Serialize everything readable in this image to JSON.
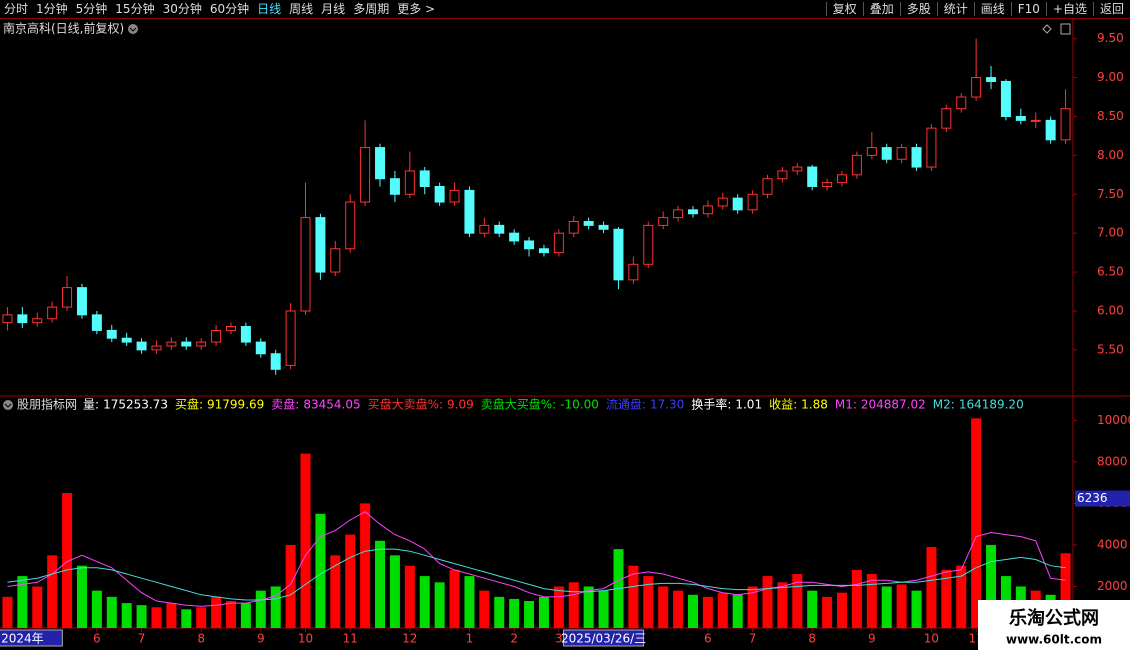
{
  "toolbar": {
    "left": [
      {
        "label": "分时"
      },
      {
        "label": "1分钟"
      },
      {
        "label": "5分钟"
      },
      {
        "label": "15分钟"
      },
      {
        "label": "30分钟"
      },
      {
        "label": "60分钟"
      },
      {
        "label": "日线",
        "active": true
      },
      {
        "label": "周线"
      },
      {
        "label": "月线"
      },
      {
        "label": "多周期"
      },
      {
        "label": "更多 >"
      }
    ],
    "right": [
      "复权",
      "叠加",
      "多股",
      "统计",
      "画线",
      "F10",
      "+自选",
      "返回"
    ]
  },
  "watermark": {
    "title": "乐淘公式网",
    "url": "www.60lt.com"
  },
  "chart_data": [
    {
      "type": "candlestick",
      "title": "南京高科(日线,前复权)",
      "up_color": "#ff3232",
      "down_color": "#54fcfc",
      "ylim": [
        4.92,
        9.74
      ],
      "yticks": [
        {
          "value": 5.5,
          "label": "5.50"
        },
        {
          "value": 6,
          "label": "6.00"
        },
        {
          "value": 6.5,
          "label": "6.50"
        },
        {
          "value": 7,
          "label": "7.00"
        },
        {
          "value": 7.5,
          "label": "7.50"
        },
        {
          "value": 8,
          "label": "8.00"
        },
        {
          "value": 8.5,
          "label": "8.50"
        },
        {
          "value": 9,
          "label": "9.00"
        },
        {
          "value": 9.5,
          "label": "9.50"
        }
      ],
      "open": [
        5.85,
        5.95,
        5.85,
        5.9,
        6.05,
        6.3,
        5.95,
        5.75,
        5.65,
        5.6,
        5.5,
        5.55,
        5.6,
        5.55,
        5.6,
        5.75,
        5.8,
        5.6,
        5.45,
        5.3,
        6.0,
        7.2,
        6.5,
        6.8,
        7.4,
        8.1,
        7.7,
        7.5,
        7.8,
        7.6,
        7.4,
        7.55,
        7.0,
        7.1,
        7.0,
        6.9,
        6.8,
        6.75,
        7.0,
        7.15,
        7.1,
        7.05,
        6.4,
        6.6,
        7.1,
        7.2,
        7.3,
        7.25,
        7.35,
        7.45,
        7.3,
        7.5,
        7.7,
        7.8,
        7.85,
        7.6,
        7.65,
        7.75,
        8.0,
        8.1,
        7.95,
        8.1,
        7.85,
        8.35,
        8.6,
        8.75,
        9.0,
        8.95,
        8.5,
        8.45,
        8.45,
        8.2
      ],
      "high": [
        6.05,
        6.05,
        5.98,
        6.12,
        6.45,
        6.35,
        6.0,
        5.82,
        5.72,
        5.65,
        5.62,
        5.66,
        5.66,
        5.65,
        5.82,
        5.85,
        5.85,
        5.65,
        5.5,
        6.1,
        7.65,
        7.25,
        6.9,
        7.5,
        8.45,
        8.15,
        7.8,
        8.05,
        7.85,
        7.65,
        7.65,
        7.6,
        7.2,
        7.15,
        7.05,
        6.95,
        6.85,
        7.05,
        7.22,
        7.2,
        7.15,
        7.08,
        6.7,
        7.15,
        7.28,
        7.35,
        7.35,
        7.42,
        7.52,
        7.5,
        7.55,
        7.75,
        7.85,
        7.9,
        7.88,
        7.7,
        7.8,
        8.05,
        8.3,
        8.15,
        8.15,
        8.15,
        8.4,
        8.65,
        8.8,
        9.5,
        9.15,
        8.98,
        8.6,
        8.55,
        8.5,
        8.85
      ],
      "low": [
        5.75,
        5.78,
        5.8,
        5.85,
        6.0,
        5.9,
        5.7,
        5.6,
        5.55,
        5.45,
        5.45,
        5.5,
        5.5,
        5.5,
        5.55,
        5.7,
        5.55,
        5.4,
        5.18,
        5.25,
        5.95,
        6.4,
        6.45,
        6.75,
        7.35,
        7.6,
        7.4,
        7.45,
        7.5,
        7.35,
        7.35,
        6.95,
        6.95,
        6.95,
        6.85,
        6.7,
        6.7,
        6.7,
        6.95,
        7.05,
        7.0,
        6.28,
        6.35,
        6.55,
        7.05,
        7.15,
        7.2,
        7.2,
        7.3,
        7.25,
        7.25,
        7.45,
        7.65,
        7.75,
        7.55,
        7.55,
        7.6,
        7.7,
        7.95,
        7.9,
        7.9,
        7.8,
        7.8,
        8.3,
        8.55,
        8.7,
        8.85,
        8.45,
        8.4,
        8.35,
        8.15,
        8.15
      ],
      "close": [
        5.95,
        5.85,
        5.9,
        6.05,
        6.3,
        5.95,
        5.75,
        5.65,
        5.6,
        5.5,
        5.55,
        5.6,
        5.55,
        5.6,
        5.75,
        5.8,
        5.6,
        5.45,
        5.25,
        6.0,
        7.2,
        6.5,
        6.8,
        7.4,
        8.1,
        7.7,
        7.5,
        7.8,
        7.6,
        7.4,
        7.55,
        7.0,
        7.1,
        7.0,
        6.9,
        6.8,
        6.75,
        7.0,
        7.15,
        7.1,
        7.05,
        6.4,
        6.6,
        7.1,
        7.2,
        7.3,
        7.25,
        7.35,
        7.45,
        7.3,
        7.5,
        7.7,
        7.8,
        7.85,
        7.6,
        7.65,
        7.75,
        8.0,
        8.1,
        7.95,
        8.1,
        7.85,
        8.35,
        8.6,
        8.75,
        9.0,
        8.95,
        8.5,
        8.45,
        8.45,
        8.2,
        8.6
      ]
    },
    {
      "type": "bar",
      "indicator": "股朋指标网",
      "up_color": "#ff0000",
      "down_color": "#00dd00",
      "ylim": [
        0,
        10500
      ],
      "yticks": [
        2000,
        4000,
        6000,
        8000,
        10000
      ],
      "cursor_value": 6236,
      "header": [
        {
          "label": "量:",
          "value": "175253.73",
          "color": "#ffffff"
        },
        {
          "label": "买盘:",
          "value": "91799.69",
          "color": "#ffff00"
        },
        {
          "label": "卖盘:",
          "value": "83454.05",
          "color": "#ff44ff"
        },
        {
          "label": "买盘大卖盘%:",
          "value": "9.09",
          "color": "#ff3232"
        },
        {
          "label": "卖盘大买盘%:",
          "value": "-10.00",
          "color": "#00e000"
        },
        {
          "label": "流通盘:",
          "value": "17.30",
          "color": "#3c3cff"
        },
        {
          "label": "换手率:",
          "value": "1.01",
          "color": "#ffffff"
        },
        {
          "label": "收益:",
          "value": "1.88",
          "color": "#ffff00"
        },
        {
          "label": "M1:",
          "value": "204887.02",
          "color": "#ff44ff"
        },
        {
          "label": "M2:",
          "value": "164189.20",
          "color": "#44dddd"
        }
      ],
      "categories": [
        null,
        "2024年",
        null,
        null,
        null,
        null,
        "6",
        null,
        null,
        "7",
        null,
        null,
        null,
        "8",
        null,
        null,
        null,
        "9",
        null,
        null,
        "10",
        null,
        null,
        "11",
        null,
        null,
        null,
        "12",
        null,
        null,
        null,
        "1",
        null,
        null,
        "2",
        null,
        null,
        "3",
        null,
        null,
        "2025/03/26/三",
        null,
        null,
        null,
        null,
        null,
        null,
        "6",
        null,
        null,
        "7",
        null,
        null,
        null,
        "8",
        null,
        null,
        null,
        "9",
        null,
        null,
        null,
        "10",
        null,
        null,
        "11",
        null,
        null,
        null,
        null,
        null,
        null
      ],
      "values": [
        1500,
        2500,
        2000,
        3500,
        6500,
        3000,
        1800,
        1500,
        1200,
        1100,
        1000,
        1200,
        900,
        1000,
        1500,
        1300,
        1200,
        1800,
        2000,
        4000,
        8400,
        5500,
        3500,
        4500,
        6000,
        4200,
        3500,
        3000,
        2500,
        2200,
        2800,
        2500,
        1800,
        1500,
        1400,
        1300,
        1500,
        2000,
        2200,
        2000,
        1800,
        3800,
        3000,
        2500,
        2000,
        1800,
        1600,
        1500,
        1700,
        1600,
        2000,
        2500,
        2200,
        2600,
        1800,
        1500,
        1700,
        2800,
        2600,
        2000,
        2100,
        1800,
        3900,
        2800,
        3000,
        10100,
        4000,
        2500,
        2000,
        1800,
        1600,
        3600
      ],
      "lines": [
        {
          "color": "#ff44ff",
          "values": [
            2000,
            2100,
            2200,
            2600,
            3200,
            3500,
            3200,
            2900,
            2300,
            1700,
            1300,
            1200,
            1100,
            1050,
            1100,
            1200,
            1200,
            1350,
            1550,
            2100,
            3500,
            4400,
            4700,
            5200,
            5600,
            5000,
            4500,
            4200,
            3800,
            3100,
            2800,
            2600,
            2400,
            2200,
            2000,
            1700,
            1500,
            1500,
            1600,
            1800,
            1900,
            2300,
            2600,
            2700,
            2600,
            2400,
            2200,
            1900,
            1700,
            1600,
            1700,
            1900,
            2000,
            2200,
            2200,
            2100,
            2000,
            2100,
            2300,
            2300,
            2200,
            2300,
            2500,
            2700,
            2800,
            4400,
            4600,
            4500,
            4400,
            4200,
            2400,
            2300
          ]
        },
        {
          "color": "#44dddd",
          "values": [
            2200,
            2300,
            2400,
            2600,
            2800,
            2900,
            2900,
            2800,
            2600,
            2400,
            2200,
            2000,
            1800,
            1600,
            1500,
            1400,
            1350,
            1350,
            1400,
            1600,
            2100,
            2600,
            3000,
            3400,
            3700,
            3800,
            3800,
            3700,
            3500,
            3300,
            3100,
            2900,
            2700,
            2500,
            2300,
            2100,
            1900,
            1800,
            1750,
            1750,
            1800,
            1900,
            2000,
            2100,
            2150,
            2150,
            2100,
            2000,
            1900,
            1850,
            1850,
            1900,
            1950,
            2000,
            2050,
            2050,
            2050,
            2050,
            2100,
            2150,
            2200,
            2200,
            2300,
            2400,
            2500,
            2900,
            3200,
            3300,
            3400,
            3300,
            3000,
            2900
          ]
        }
      ]
    }
  ]
}
